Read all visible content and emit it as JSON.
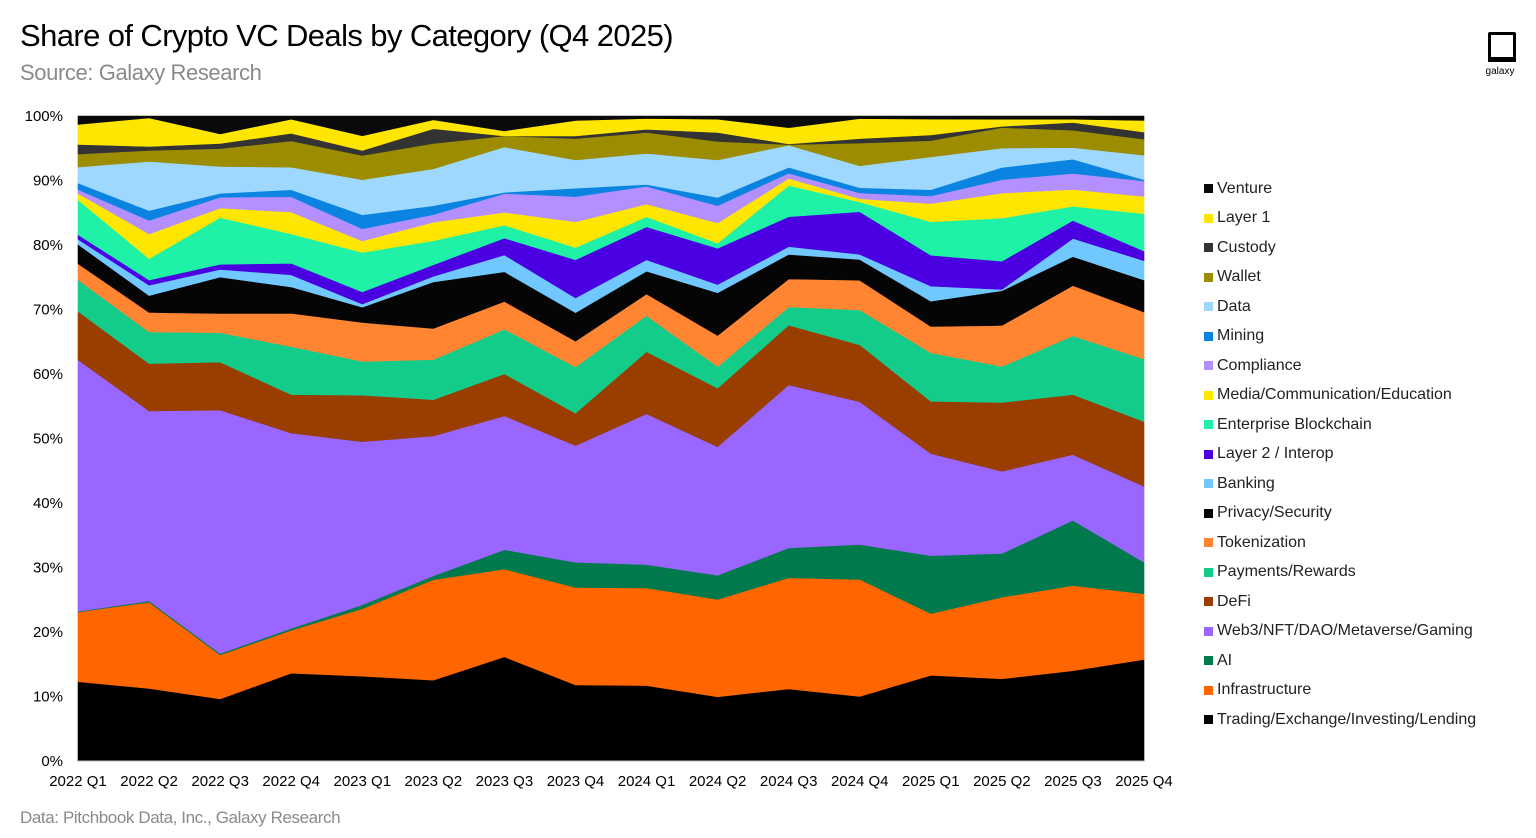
{
  "header": {
    "title": "Share of Crypto VC Deals by Category (Q4 2025)",
    "source": "Source: Galaxy Research"
  },
  "footer": {
    "note": "Data: Pitchbook Data, Inc., Galaxy Research"
  },
  "logo": {
    "text": "galaxy"
  },
  "chart_data": {
    "type": "area",
    "stacked": true,
    "normalized_percent": true,
    "title": "Share of Crypto VC Deals by Category (Q4 2025)",
    "ylim": [
      0,
      100
    ],
    "y_ticks": [
      "0%",
      "10%",
      "20%",
      "30%",
      "40%",
      "50%",
      "60%",
      "70%",
      "80%",
      "90%",
      "100%"
    ],
    "x": [
      "2022 Q1",
      "2022 Q2",
      "2022 Q3",
      "2022 Q4",
      "2023 Q1",
      "2023 Q2",
      "2023 Q3",
      "2023 Q4",
      "2024 Q1",
      "2024 Q2",
      "2024 Q3",
      "2024 Q4",
      "2025 Q1",
      "2025 Q2",
      "2025 Q3",
      "2025 Q4"
    ],
    "legend_position": "right",
    "series": [
      {
        "name": "Trading/Exchange/Investing/Lending",
        "color": "#000000",
        "values": [
          12.3,
          11.2,
          9.7,
          13.7,
          13.3,
          12.7,
          16.1,
          11.8,
          11.9,
          10.1,
          11.1,
          10.0,
          13.6,
          12.8,
          14.0,
          15.8
        ]
      },
      {
        "name": "Infrastructure",
        "color": "#ff6600",
        "values": [
          10.8,
          13.3,
          6.9,
          6.7,
          10.6,
          15.8,
          13.6,
          15.1,
          15.4,
          15.3,
          17.1,
          18.1,
          9.8,
          12.7,
          13.2,
          10.2
        ]
      },
      {
        "name": "AI",
        "color": "#007a4d",
        "values": [
          0.1,
          0.2,
          0.2,
          0.3,
          0.6,
          0.6,
          3.0,
          3.9,
          3.7,
          3.8,
          4.6,
          5.4,
          9.2,
          6.8,
          10.1,
          4.9
        ]
      },
      {
        "name": "Web3/NFT/DAO/Metaverse/Gaming",
        "color": "#9966ff",
        "values": [
          39.0,
          29.3,
          38.1,
          30.5,
          25.6,
          22.0,
          20.7,
          18.1,
          23.8,
          20.2,
          25.1,
          22.1,
          16.2,
          12.8,
          10.2,
          11.8
        ]
      },
      {
        "name": "DeFi",
        "color": "#993d00",
        "values": [
          7.5,
          7.3,
          7.5,
          6.0,
          7.3,
          5.7,
          6.5,
          5.0,
          9.8,
          9.2,
          9.2,
          8.8,
          8.3,
          10.7,
          9.3,
          10.1
        ]
      },
      {
        "name": "Payments/Rewards",
        "color": "#14cc8a",
        "values": [
          4.9,
          4.9,
          4.6,
          7.5,
          5.3,
          6.3,
          6.9,
          7.2,
          5.7,
          3.4,
          2.8,
          5.4,
          7.7,
          5.6,
          9.1,
          9.7
        ]
      },
      {
        "name": "Tokenization",
        "color": "#ff8533",
        "values": [
          2.5,
          3.0,
          3.0,
          5.2,
          6.1,
          4.9,
          4.3,
          4.0,
          3.4,
          4.9,
          4.3,
          4.6,
          4.2,
          6.4,
          7.8,
          7.3
        ]
      },
      {
        "name": "Privacy/Security",
        "color": "#050505",
        "values": [
          3.0,
          2.6,
          5.7,
          4.1,
          2.4,
          7.3,
          4.6,
          4.4,
          3.6,
          6.7,
          3.8,
          3.2,
          4.0,
          5.4,
          4.5,
          5.0
        ]
      },
      {
        "name": "Banking",
        "color": "#70c8ff",
        "values": [
          0.8,
          1.6,
          1.2,
          1.9,
          0.5,
          0.9,
          2.6,
          2.3,
          1.8,
          1.3,
          1.2,
          0.8,
          2.4,
          0.2,
          2.8,
          3.0
        ]
      },
      {
        "name": "Layer 2 / Interop",
        "color": "#4a00e0",
        "values": [
          0.7,
          0.8,
          0.8,
          1.8,
          1.9,
          1.8,
          2.6,
          5.9,
          5.2,
          5.7,
          4.6,
          6.6,
          4.9,
          4.4,
          2.8,
          1.5
        ]
      },
      {
        "name": "Enterprise Blockchain",
        "color": "#1ff2a6",
        "values": [
          5.4,
          3.3,
          7.3,
          4.6,
          6.2,
          3.8,
          2.0,
          1.9,
          1.6,
          0.8,
          4.8,
          1.5,
          5.3,
          6.7,
          2.2,
          5.8
        ]
      },
      {
        "name": "Media/Communication/Education",
        "color": "#ffe600",
        "values": [
          1.0,
          3.8,
          1.5,
          3.4,
          1.8,
          2.9,
          2.0,
          4.0,
          2.0,
          3.2,
          1.1,
          0.5,
          2.9,
          3.9,
          2.6,
          2.7
        ]
      },
      {
        "name": "Compliance",
        "color": "#b38fff",
        "values": [
          0.6,
          2.1,
          1.7,
          2.4,
          1.9,
          1.2,
          2.9,
          3.9,
          2.8,
          2.7,
          0.8,
          0.9,
          1.2,
          2.1,
          2.5,
          2.4
        ]
      },
      {
        "name": "Mining",
        "color": "#0a84e0",
        "values": [
          1.0,
          1.5,
          0.6,
          1.1,
          2.2,
          1.4,
          0.2,
          1.3,
          0.3,
          1.3,
          0.9,
          0.8,
          1.0,
          1.9,
          2.2,
          0.2
        ]
      },
      {
        "name": "Data",
        "color": "#9ed8ff",
        "values": [
          2.5,
          7.6,
          4.2,
          3.5,
          5.5,
          5.8,
          7.0,
          4.4,
          4.9,
          5.9,
          3.4,
          3.4,
          5.2,
          3.0,
          1.8,
          3.8
        ]
      },
      {
        "name": "Wallet",
        "color": "#9c8c00",
        "values": [
          2.0,
          1.7,
          2.8,
          4.1,
          3.8,
          4.0,
          1.7,
          3.3,
          3.3,
          2.9,
          0.1,
          3.5,
          2.6,
          3.2,
          2.7,
          2.5
        ]
      },
      {
        "name": "Custody",
        "color": "#333333",
        "values": [
          1.5,
          0.6,
          0.8,
          1.2,
          0.8,
          2.3,
          0.0,
          0.4,
          0.5,
          1.4,
          0.1,
          0.7,
          0.9,
          0.2,
          1.2,
          1.1
        ]
      },
      {
        "name": "Layer 1",
        "color": "#ffe600",
        "values": [
          3.1,
          4.4,
          1.5,
          2.2,
          2.3,
          1.4,
          0.8,
          2.4,
          1.7,
          2.1,
          2.5,
          3.1,
          2.5,
          1.1,
          0.5,
          1.8
        ]
      },
      {
        "name": "Venture",
        "color": "#0a0a0a",
        "values": [
          1.3,
          0.3,
          2.8,
          0.5,
          3.1,
          0.6,
          2.3,
          0.7,
          0.4,
          0.5,
          1.8,
          0.4,
          0.5,
          0.5,
          0.5,
          0.7
        ]
      }
    ]
  }
}
